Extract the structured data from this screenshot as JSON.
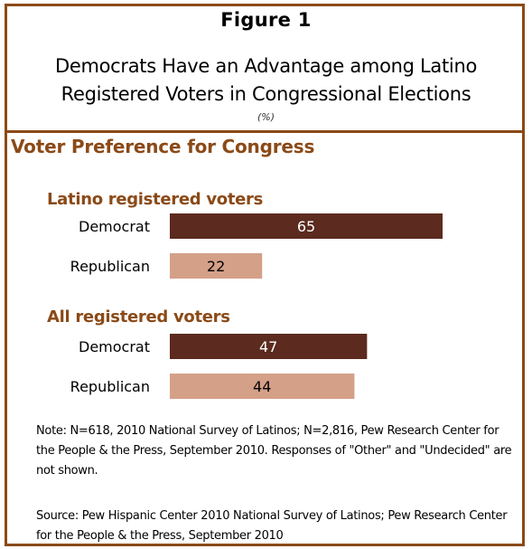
{
  "figure_label": "Figure 1",
  "title": "Democrats Have an Advantage among Latino\nRegistered Voters in Congressional Elections",
  "unit": "(%)",
  "subtitle": "Voter Preference for Congress",
  "colors": {
    "frame": "#8B4A17",
    "heading": "#8B4A17",
    "democrat": "#5C2A1F",
    "republican": "#D4A088"
  },
  "chart_data": {
    "type": "bar",
    "orientation": "horizontal",
    "title": "Voter Preference for Congress",
    "xlim": [
      0,
      100
    ],
    "grid": false,
    "groups": [
      {
        "name": "Latino registered voters",
        "bars": [
          {
            "label": "Democrat",
            "value": 65,
            "color": "#5C2A1F"
          },
          {
            "label": "Republican",
            "value": 22,
            "color": "#D4A088"
          }
        ]
      },
      {
        "name": "All registered voters",
        "bars": [
          {
            "label": "Democrat",
            "value": 47,
            "color": "#5C2A1F"
          },
          {
            "label": "Republican",
            "value": 44,
            "color": "#D4A088"
          }
        ]
      }
    ]
  },
  "note": "Note: N=618, 2010 National Survey of Latinos;  N=2,816, Pew Research Center for the People & the Press, September 2010. Responses of \"Other\" and \"Undecided\" are not shown.",
  "source": "Source: Pew Hispanic Center 2010 National Survey of Latinos;  Pew Research Center for the People & the Press, September 2010"
}
